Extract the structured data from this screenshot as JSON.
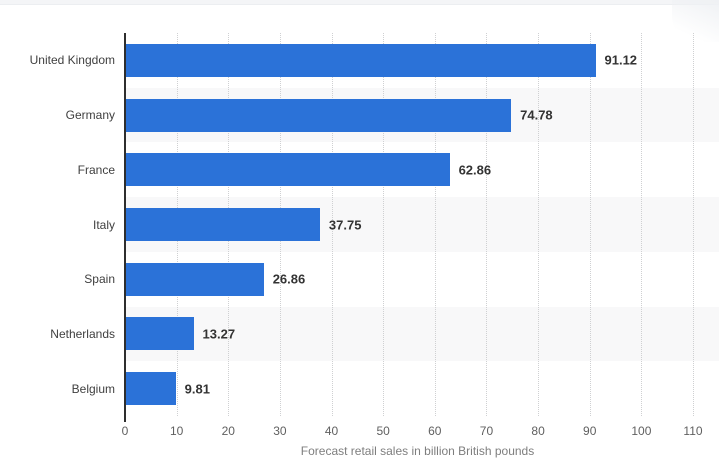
{
  "chart_data": {
    "type": "bar",
    "orientation": "horizontal",
    "title": "",
    "categories": [
      "United Kingdom",
      "Germany",
      "France",
      "Italy",
      "Spain",
      "Netherlands",
      "Belgium"
    ],
    "values": [
      91.12,
      74.78,
      62.86,
      37.75,
      26.86,
      13.27,
      9.81
    ],
    "value_labels": [
      "91.12",
      "74.78",
      "62.86",
      "37.75",
      "26.86",
      "13.27",
      "9.81"
    ],
    "xlabel": "Forecast retail sales in billion British pounds",
    "ylabel": "",
    "xlim": [
      0,
      110
    ],
    "x_ticks": [
      0,
      10,
      20,
      30,
      40,
      50,
      60,
      70,
      80,
      90,
      100,
      110
    ],
    "grid": "vertical dotted gridlines at each x tick",
    "legend": "none",
    "row_shading": "alternate rows shaded, starting with second row",
    "colors": {
      "bar": "#2b72d8",
      "row_stripe": "#f8f8f9",
      "gridline": "#cfd0d2",
      "axis_line": "#2e2e2e",
      "category_label": "#3f3f3f",
      "value_label": "#333333",
      "tick_label": "#606060",
      "axis_title": "#7e7e7e",
      "page_strip": "#f4f5f7"
    }
  }
}
